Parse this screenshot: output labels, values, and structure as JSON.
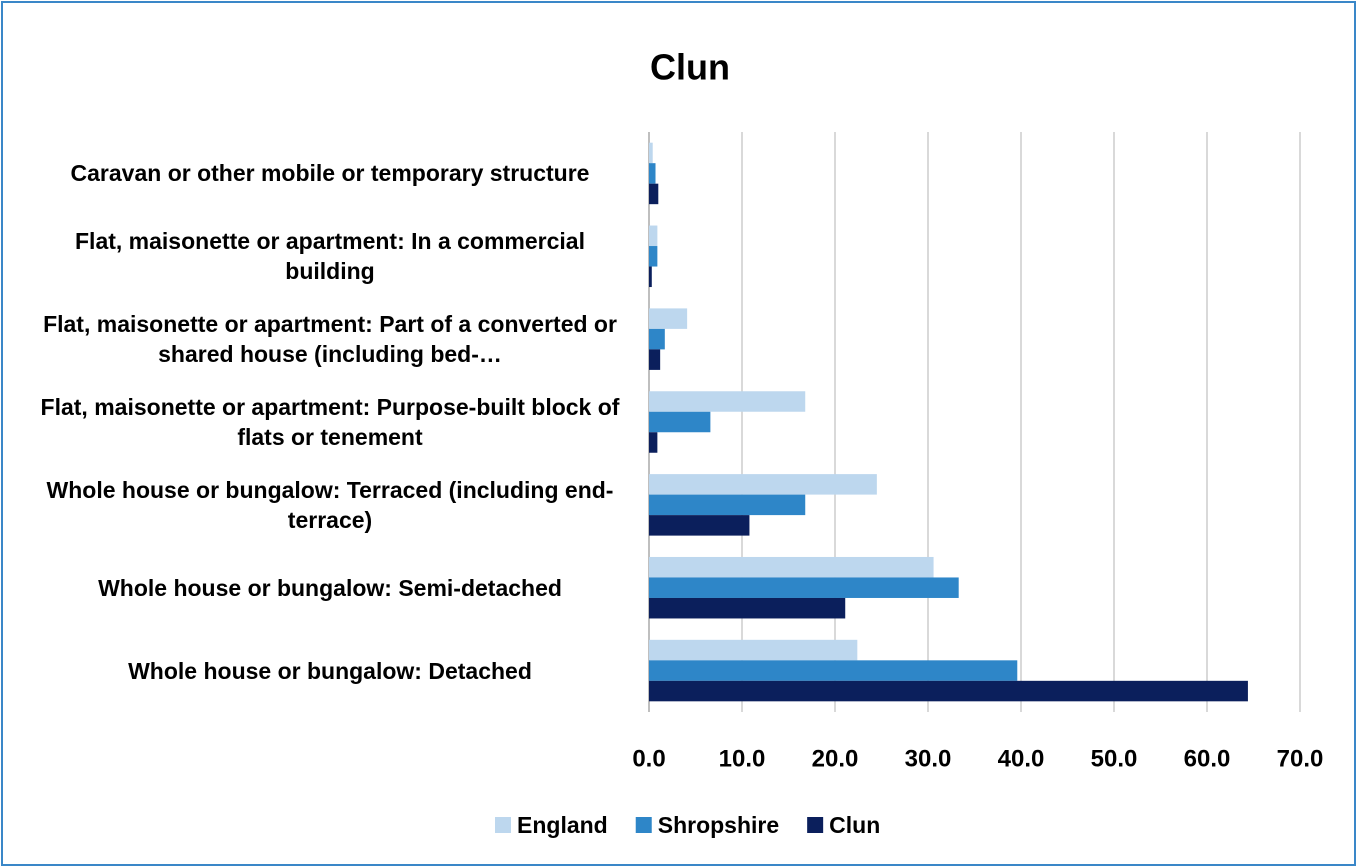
{
  "chart_data": {
    "type": "bar",
    "orientation": "horizontal",
    "title": "Clun",
    "categories": [
      "Caravan or other mobile or temporary structure",
      "Flat, maisonette or apartment: In a commercial building",
      "Flat, maisonette or apartment: Part of a converted or shared house (including bed-…",
      "Flat, maisonette or apartment: Purpose-built block of flats or tenement",
      "Whole house or bungalow: Terraced (including end-terrace)",
      "Whole house or bungalow: Semi-detached",
      "Whole house or bungalow: Detached"
    ],
    "series": [
      {
        "name": "England",
        "color": "#bdd7ee",
        "values": [
          0.4,
          0.9,
          4.1,
          16.8,
          24.5,
          30.6,
          22.4
        ]
      },
      {
        "name": "Shropshire",
        "color": "#2e86c8",
        "values": [
          0.7,
          0.9,
          1.7,
          6.6,
          16.8,
          33.3,
          39.6
        ]
      },
      {
        "name": "Clun",
        "color": "#0b1f5c",
        "values": [
          1.0,
          0.3,
          1.2,
          0.9,
          10.8,
          21.1,
          64.4
        ]
      }
    ],
    "xlim": [
      0,
      70
    ],
    "xticks": [
      {
        "value": 0,
        "label": "0.0"
      },
      {
        "value": 10,
        "label": "10.0"
      },
      {
        "value": 20,
        "label": "20.0"
      },
      {
        "value": 30,
        "label": "30.0"
      },
      {
        "value": 40,
        "label": "40.0"
      },
      {
        "value": 50,
        "label": "50.0"
      },
      {
        "value": 60,
        "label": "60.0"
      },
      {
        "value": 70,
        "label": "70.0"
      }
    ],
    "grid": true,
    "legend": "bottom"
  }
}
